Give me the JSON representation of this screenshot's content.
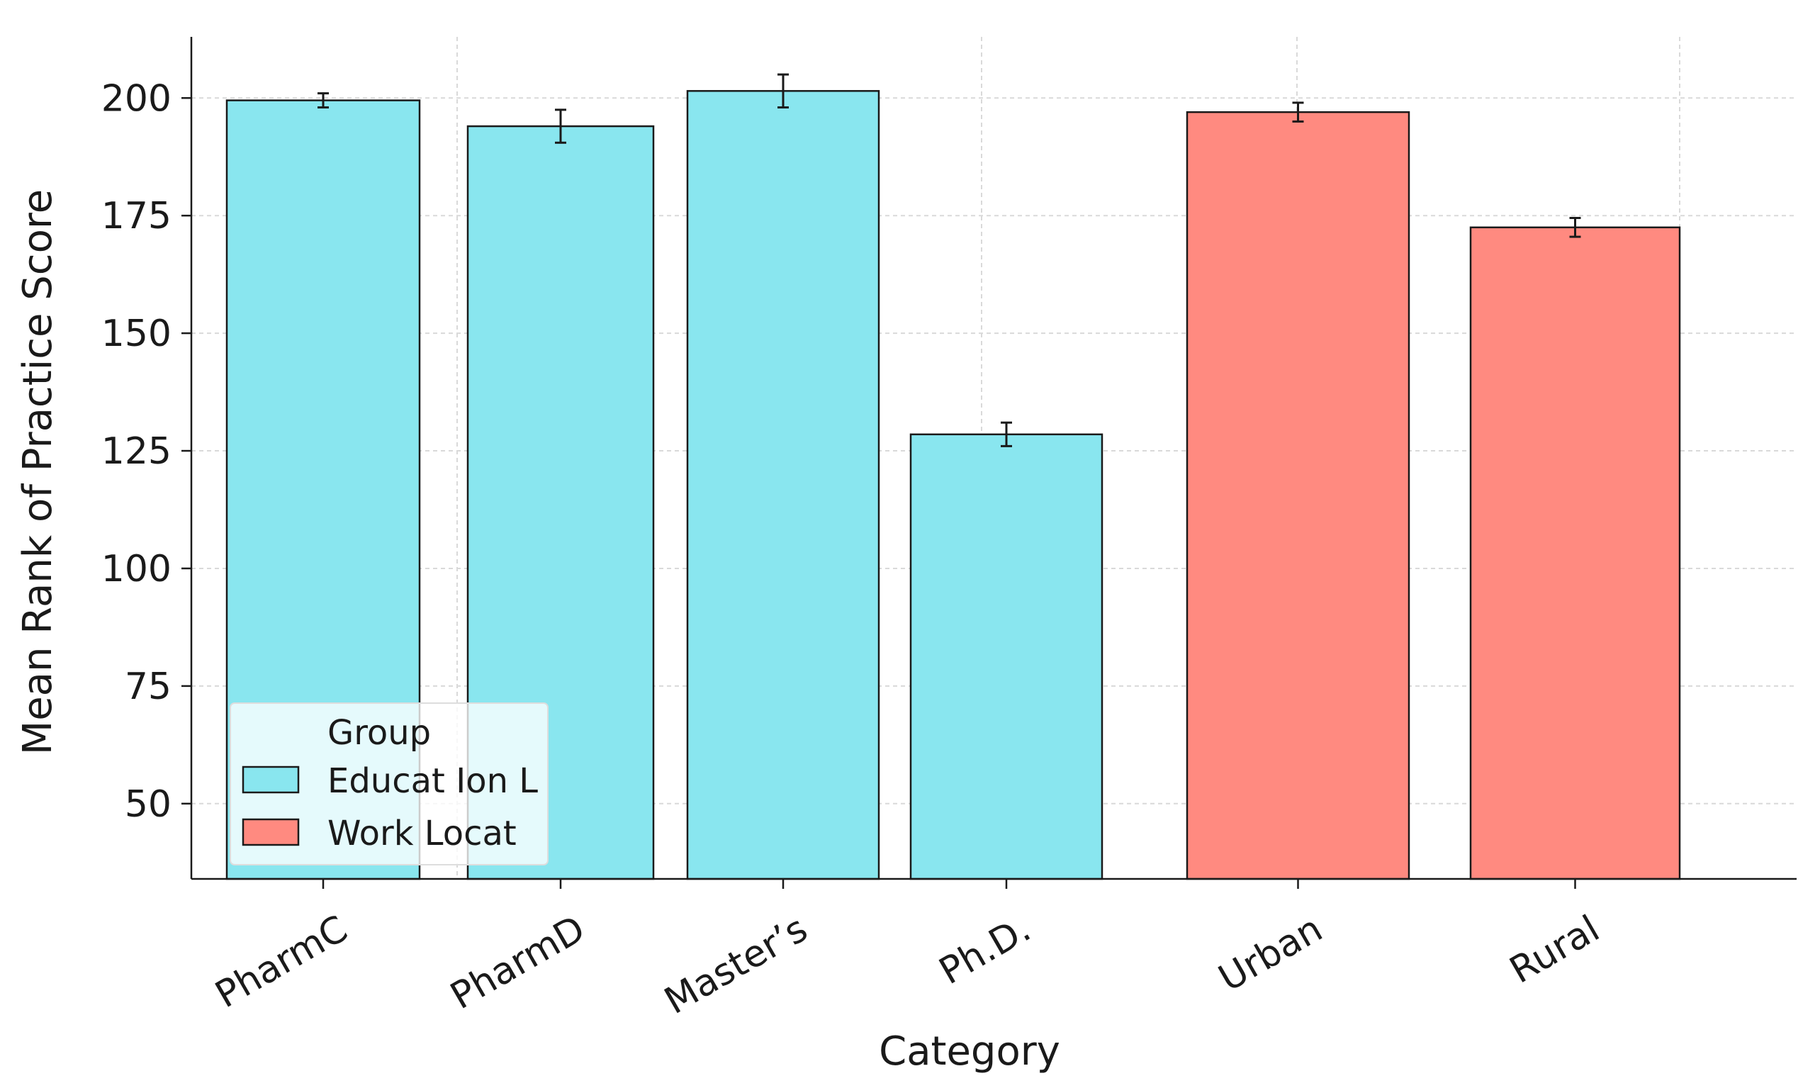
{
  "chart_data": {
    "type": "bar",
    "categories": [
      "PharmC",
      "PharmD",
      "Master’s",
      "Ph.D.",
      "Urban",
      "Rural"
    ],
    "values": [
      199.5,
      194,
      201.5,
      128.5,
      197,
      172.5
    ],
    "errors": [
      1.5,
      3.5,
      3.5,
      2.5,
      2,
      2
    ],
    "groups": [
      "Educat Ion L",
      "Educat Ion L",
      "Educat Ion L",
      "Educat Ion L",
      "Work Locat",
      "Work Locat"
    ],
    "xlabel": "Category",
    "ylabel": "Mean Rank of Practice Score",
    "ylim": [
      34,
      213
    ],
    "yticks": [
      50,
      75,
      100,
      125,
      150,
      175,
      200
    ],
    "grid": true,
    "legend": {
      "title": "Group",
      "placement": "lower-left",
      "entries": [
        {
          "label": "Educat Ion L",
          "color": "#89e6ef"
        },
        {
          "label": "Work Locat",
          "color": "#ff8a80"
        }
      ]
    },
    "colors": {
      "Educat Ion L": "#89e6ef",
      "Work Locat": "#ff8a80",
      "edge": "#1a1a1a",
      "grid": "#d9d9d9"
    }
  }
}
